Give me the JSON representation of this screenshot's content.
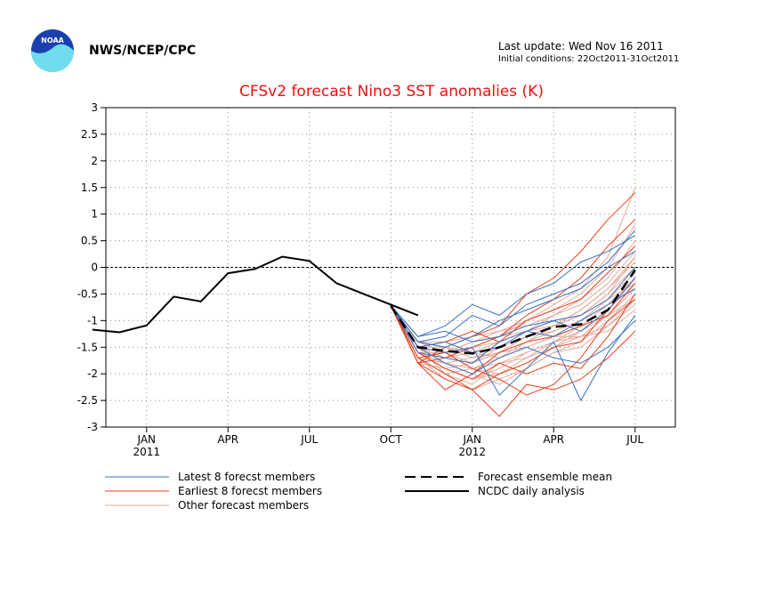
{
  "header": {
    "org": "NWS/NCEP/CPC",
    "logo_text": "NOAA",
    "last_update": "Last update: Wed Nov 16 2011",
    "initial_conditions": "Initial conditions: 22Oct2011-31Oct2011"
  },
  "legend": {
    "latest": "Latest 8 forecst members",
    "earliest": "Earliest 8 forecst members",
    "other": "Other forecast members",
    "mean": "Forecast ensemble mean",
    "ncdc": "NCDC daily analysis"
  },
  "colors": {
    "latest": "#3a6fc4",
    "earliest": "#e8401c",
    "other": "#e0aa9c",
    "mean": "#000000",
    "ncdc": "#000000",
    "title": "#ee1010",
    "logo_blue": "#1a3fb0",
    "logo_cyan": "#6fdcf0"
  },
  "chart_data": {
    "type": "line",
    "title": "CFSv2 forecast Nino3 SST anomalies (K)",
    "xlabel": "",
    "ylabel": "",
    "ylim": [
      -3,
      3
    ],
    "yticks": [
      "3",
      "2.5",
      "2",
      "1.5",
      "1",
      "0.5",
      "0",
      "-0.5",
      "-1",
      "-1.5",
      "-2",
      "-2.5",
      "-3"
    ],
    "xticks": [
      {
        "label": "JAN",
        "sub": "2011"
      },
      {
        "label": "APR",
        "sub": ""
      },
      {
        "label": "JUL",
        "sub": ""
      },
      {
        "label": "OCT",
        "sub": ""
      },
      {
        "label": "JAN",
        "sub": "2012"
      },
      {
        "label": "APR",
        "sub": ""
      },
      {
        "label": "JUL",
        "sub": ""
      }
    ],
    "grid": true,
    "zero_line": true,
    "ncdc_daily_analysis": {
      "x": [
        "2010-11",
        "2010-12",
        "2011-01",
        "2011-02",
        "2011-03",
        "2011-04",
        "2011-05",
        "2011-06",
        "2011-07",
        "2011-08",
        "2011-09",
        "2011-10",
        "2011-11"
      ],
      "values": [
        -1.17,
        -1.22,
        -1.09,
        -0.55,
        -0.64,
        -0.11,
        -0.03,
        0.2,
        0.12,
        -0.3,
        -0.5,
        -0.7,
        -0.9
      ]
    },
    "forecast_ensemble_mean": {
      "x": [
        "2011-10",
        "2011-11",
        "2011-12",
        "2012-01",
        "2012-02",
        "2012-03",
        "2012-04",
        "2012-05",
        "2012-06",
        "2012-07"
      ],
      "values": [
        -0.72,
        -1.5,
        -1.57,
        -1.62,
        -1.5,
        -1.3,
        -1.12,
        -1.07,
        -0.8,
        -0.05
      ]
    },
    "forecast_months": [
      "2011-10",
      "2011-11",
      "2011-12",
      "2012-01",
      "2012-02",
      "2012-03",
      "2012-04",
      "2012-05",
      "2012-06",
      "2012-07"
    ],
    "latest_8_forecast_members": [
      [
        -0.72,
        -1.4,
        -1.3,
        -0.9,
        -1.1,
        -0.7,
        -0.5,
        -0.3,
        0.1,
        0.7
      ],
      [
        -0.72,
        -1.5,
        -1.6,
        -1.5,
        -2.4,
        -1.9,
        -1.4,
        -2.5,
        -1.6,
        -0.9
      ],
      [
        -0.72,
        -1.3,
        -1.1,
        -0.7,
        -0.9,
        -0.5,
        -0.3,
        0.1,
        0.3,
        0.6
      ],
      [
        -0.72,
        -1.6,
        -1.7,
        -1.8,
        -1.4,
        -1.2,
        -1.0,
        -1.2,
        -0.8,
        -0.2
      ],
      [
        -0.72,
        -1.4,
        -1.5,
        -1.3,
        -1.0,
        -0.8,
        -0.6,
        -0.4,
        0.0,
        0.3
      ],
      [
        -0.72,
        -1.5,
        -1.8,
        -2.0,
        -1.7,
        -1.5,
        -1.7,
        -1.8,
        -1.5,
        -1.0
      ],
      [
        -0.72,
        -1.3,
        -1.2,
        -1.4,
        -1.3,
        -1.1,
        -1.0,
        -0.9,
        -0.6,
        0.0
      ],
      [
        -0.72,
        -1.5,
        -1.4,
        -1.6,
        -1.5,
        -1.2,
        -1.3,
        -1.0,
        -0.7,
        -0.4
      ]
    ],
    "earliest_8_forecast_members": [
      [
        -0.72,
        -1.8,
        -1.5,
        -1.3,
        -1.1,
        -0.5,
        -0.2,
        0.3,
        0.9,
        1.4
      ],
      [
        -0.72,
        -1.7,
        -2.0,
        -2.3,
        -2.8,
        -2.2,
        -2.3,
        -2.1,
        -1.7,
        -1.2
      ],
      [
        -0.72,
        -1.8,
        -1.7,
        -1.5,
        -1.3,
        -0.9,
        -0.6,
        -0.2,
        0.4,
        0.9
      ],
      [
        -0.72,
        -1.6,
        -1.9,
        -2.1,
        -1.8,
        -2.0,
        -1.8,
        -1.9,
        -1.3,
        -0.5
      ],
      [
        -0.72,
        -1.8,
        -2.3,
        -2.0,
        -1.6,
        -1.4,
        -1.3,
        -1.1,
        -0.9,
        -0.3
      ],
      [
        -0.72,
        -1.7,
        -1.6,
        -1.9,
        -2.1,
        -2.4,
        -2.2,
        -1.7,
        -1.0,
        -0.6
      ],
      [
        -0.72,
        -1.5,
        -1.4,
        -1.2,
        -1.4,
        -1.0,
        -0.8,
        -0.6,
        -0.1,
        0.4
      ],
      [
        -0.72,
        -1.8,
        -2.1,
        -2.3,
        -2.0,
        -1.8,
        -1.5,
        -1.4,
        -0.8,
        -0.2
      ]
    ],
    "other_forecast_members": [
      [
        -0.72,
        -1.4,
        -1.6,
        -1.4,
        -1.2,
        -1.0,
        -0.7,
        -0.4,
        0.2,
        1.5
      ],
      [
        -0.72,
        -1.5,
        -1.7,
        -1.8,
        -1.6,
        -1.4,
        -1.1,
        -0.9,
        -0.5,
        0.2
      ],
      [
        -0.72,
        -1.6,
        -1.9,
        -2.1,
        -1.9,
        -1.6,
        -1.4,
        -1.2,
        -0.8,
        -0.3
      ],
      [
        -0.72,
        -1.5,
        -1.5,
        -1.6,
        -1.7,
        -1.5,
        -1.3,
        -1.3,
        -1.1,
        -0.6
      ],
      [
        -0.72,
        -1.7,
        -2.1,
        -2.3,
        -2.1,
        -1.9,
        -1.6,
        -1.4,
        -1.0,
        -0.5
      ],
      [
        -0.72,
        -1.4,
        -1.4,
        -1.3,
        -1.2,
        -1.1,
        -0.9,
        -0.7,
        -0.3,
        0.3
      ],
      [
        -0.72,
        -1.6,
        -1.8,
        -1.7,
        -1.5,
        -1.3,
        -1.2,
        -1.0,
        -0.7,
        -0.2
      ],
      [
        -0.72,
        -1.5,
        -1.6,
        -1.9,
        -2.0,
        -1.8,
        -1.5,
        -1.3,
        -1.2,
        -0.8
      ],
      [
        -0.72,
        -1.7,
        -1.6,
        -1.5,
        -1.3,
        -1.2,
        -1.1,
        -0.8,
        -0.4,
        0.1
      ],
      [
        -0.72,
        -1.5,
        -2.0,
        -2.2,
        -1.8,
        -1.7,
        -1.4,
        -1.3,
        -0.9,
        -0.4
      ],
      [
        -0.72,
        -1.6,
        -1.7,
        -1.6,
        -1.4,
        -1.2,
        -0.9,
        -0.6,
        -0.2,
        0.5
      ],
      [
        -0.72,
        -1.4,
        -1.5,
        -1.7,
        -1.6,
        -1.5,
        -1.3,
        -1.1,
        -0.9,
        -0.6
      ],
      [
        -0.72,
        -1.8,
        -1.9,
        -1.8,
        -1.6,
        -1.3,
        -1.1,
        -0.9,
        -0.6,
        -0.1
      ],
      [
        -0.72,
        -1.5,
        -1.8,
        -2.0,
        -2.2,
        -1.9,
        -1.6,
        -1.5,
        -1.1,
        -0.7
      ],
      [
        -0.72,
        -1.6,
        -1.6,
        -1.4,
        -1.3,
        -1.0,
        -0.8,
        -0.5,
        0.0,
        0.8
      ],
      [
        -0.72,
        -1.7,
        -1.8,
        -1.9,
        -1.7,
        -1.4,
        -1.2,
        -1.0,
        -0.6,
        -0.3
      ],
      [
        -0.72,
        -1.5,
        -1.7,
        -1.5,
        -1.4,
        -1.2,
        -1.0,
        -0.9,
        -0.5,
        0.0
      ],
      [
        -0.72,
        -1.6,
        -1.9,
        -2.1,
        -2.0,
        -1.7,
        -1.5,
        -1.2,
        -0.9,
        -0.4
      ],
      [
        -0.72,
        -1.4,
        -1.6,
        -1.8,
        -1.5,
        -1.3,
        -1.1,
        -0.8,
        -0.4,
        0.2
      ],
      [
        -0.72,
        -1.7,
        -2.0,
        -1.9,
        -1.8,
        -1.6,
        -1.4,
        -1.1,
        -0.7,
        -0.2
      ]
    ]
  }
}
